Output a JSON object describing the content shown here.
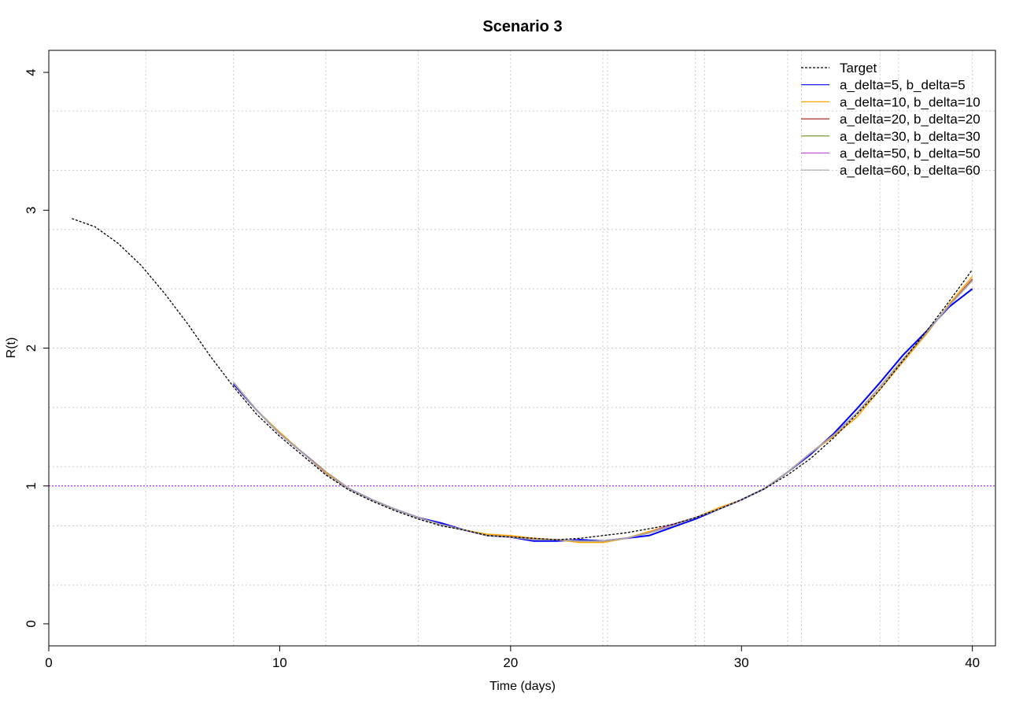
{
  "chart_data": {
    "type": "line",
    "title": "Scenario 3",
    "xlabel": "Time (days)",
    "ylabel": "R(t)",
    "xlim": [
      0,
      41
    ],
    "ylim": [
      -0.16,
      4.16
    ],
    "x_ticks": [
      0,
      10,
      20,
      30,
      40
    ],
    "y_ticks": [
      0,
      1,
      2,
      3,
      4
    ],
    "x_grid": [
      8,
      12,
      16,
      20,
      24,
      28,
      32,
      36,
      40
    ],
    "x_grid_extra": [
      4.2,
      24.2,
      28.4,
      32.6,
      36.8
    ],
    "y_grid": [
      0.28,
      0.71,
      1.14,
      1.57,
      2.0,
      2.43,
      2.86,
      3.29,
      3.72
    ],
    "grid": true,
    "legend_position": "top-right",
    "reference_line": {
      "y": 1,
      "color": "#9400D3"
    },
    "target": {
      "name": "Target",
      "color": "#000000",
      "x": [
        1,
        2,
        3,
        4,
        5,
        6,
        7,
        8,
        9,
        10,
        11,
        12,
        13,
        14,
        15,
        16,
        17,
        18,
        19,
        20,
        21,
        22,
        23,
        24,
        25,
        26,
        27,
        28,
        29,
        30,
        31,
        32,
        33,
        34,
        35,
        36,
        37,
        38,
        39,
        40
      ],
      "y": [
        2.94,
        2.88,
        2.76,
        2.6,
        2.4,
        2.18,
        1.94,
        1.72,
        1.52,
        1.36,
        1.22,
        1.08,
        0.97,
        0.89,
        0.82,
        0.76,
        0.71,
        0.68,
        0.64,
        0.63,
        0.62,
        0.61,
        0.62,
        0.64,
        0.66,
        0.69,
        0.72,
        0.77,
        0.83,
        0.9,
        0.98,
        1.08,
        1.2,
        1.35,
        1.52,
        1.7,
        1.91,
        2.12,
        2.34,
        2.57
      ]
    },
    "x": [
      8,
      9,
      10,
      11,
      12,
      13,
      14,
      15,
      16,
      17,
      18,
      19,
      20,
      21,
      22,
      23,
      24,
      25,
      26,
      27,
      28,
      29,
      30,
      31,
      32,
      33,
      34,
      35,
      36,
      37,
      38,
      39,
      40
    ],
    "series": [
      {
        "name": "a_delta=5, b_delta=5",
        "color": "#0000FF",
        "values": [
          1.74,
          1.55,
          1.38,
          1.24,
          1.1,
          0.98,
          0.9,
          0.83,
          0.77,
          0.73,
          0.68,
          0.64,
          0.63,
          0.6,
          0.6,
          0.61,
          0.6,
          0.62,
          0.64,
          0.7,
          0.76,
          0.83,
          0.9,
          0.98,
          1.1,
          1.23,
          1.38,
          1.56,
          1.75,
          1.95,
          2.12,
          2.3,
          2.43
        ]
      },
      {
        "name": "a_delta=10, b_delta=10",
        "color": "#FFA500",
        "values": [
          1.75,
          1.55,
          1.39,
          1.24,
          1.1,
          0.98,
          0.9,
          0.83,
          0.77,
          0.72,
          0.68,
          0.65,
          0.64,
          0.62,
          0.61,
          0.59,
          0.59,
          0.62,
          0.67,
          0.72,
          0.77,
          0.84,
          0.9,
          0.98,
          1.1,
          1.24,
          1.36,
          1.5,
          1.7,
          1.9,
          2.1,
          2.32,
          2.52
        ]
      },
      {
        "name": "a_delta=20, b_delta=20",
        "color": "#A52A2A",
        "values": [
          1.75,
          1.55,
          1.38,
          1.24,
          1.09,
          0.98,
          0.9,
          0.83,
          0.77,
          0.72,
          0.68,
          0.64,
          0.63,
          0.61,
          0.61,
          0.6,
          0.6,
          0.62,
          0.66,
          0.71,
          0.77,
          0.83,
          0.9,
          0.98,
          1.1,
          1.24,
          1.37,
          1.53,
          1.72,
          1.92,
          2.11,
          2.31,
          2.5
        ]
      },
      {
        "name": "a_delta=30, b_delta=30",
        "color": "#6B8E23",
        "values": [
          1.75,
          1.55,
          1.38,
          1.24,
          1.09,
          0.98,
          0.9,
          0.83,
          0.77,
          0.72,
          0.68,
          0.64,
          0.63,
          0.61,
          0.61,
          0.6,
          0.6,
          0.62,
          0.66,
          0.71,
          0.77,
          0.83,
          0.9,
          0.98,
          1.1,
          1.24,
          1.37,
          1.53,
          1.72,
          1.92,
          2.11,
          2.31,
          2.49
        ]
      },
      {
        "name": "a_delta=50, b_delta=50",
        "color": "#BA55D3",
        "values": [
          1.75,
          1.55,
          1.38,
          1.24,
          1.09,
          0.98,
          0.9,
          0.83,
          0.77,
          0.72,
          0.68,
          0.64,
          0.63,
          0.61,
          0.61,
          0.6,
          0.6,
          0.62,
          0.66,
          0.72,
          0.77,
          0.83,
          0.9,
          0.98,
          1.1,
          1.24,
          1.37,
          1.53,
          1.72,
          1.92,
          2.11,
          2.31,
          2.49
        ]
      },
      {
        "name": "a_delta=60, b_delta=60",
        "color": "#A9A9A9",
        "values": [
          1.75,
          1.55,
          1.38,
          1.24,
          1.09,
          0.98,
          0.9,
          0.83,
          0.77,
          0.72,
          0.68,
          0.64,
          0.63,
          0.61,
          0.61,
          0.6,
          0.6,
          0.62,
          0.66,
          0.71,
          0.77,
          0.83,
          0.9,
          0.98,
          1.1,
          1.24,
          1.37,
          1.53,
          1.72,
          1.92,
          2.11,
          2.31,
          2.49
        ]
      }
    ]
  }
}
